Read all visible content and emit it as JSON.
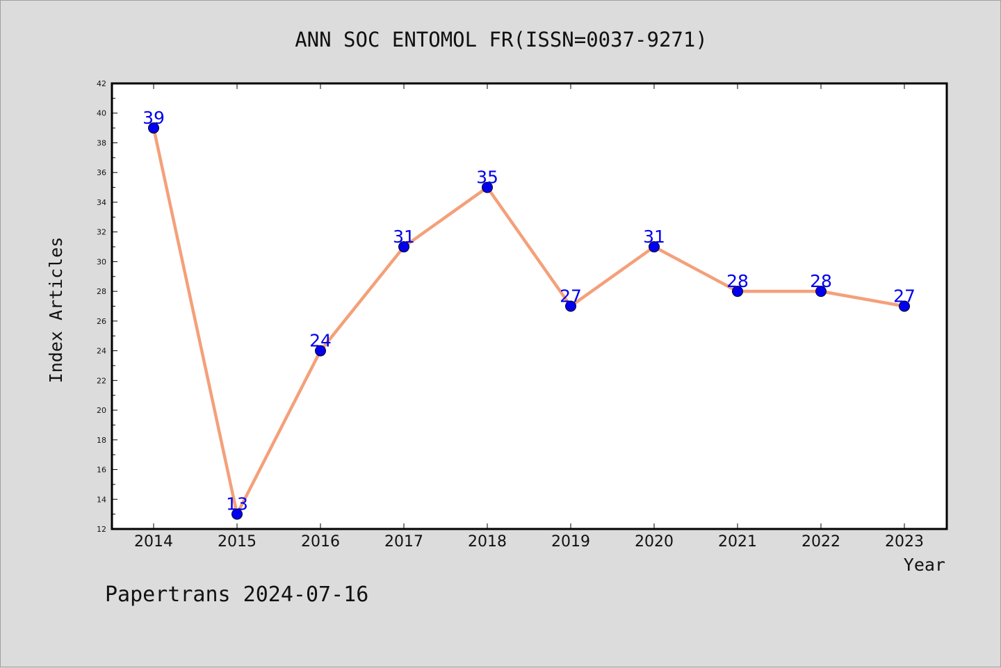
{
  "chart_data": {
    "type": "line",
    "title": "ANN SOC ENTOMOL FR(ISSN=0037-9271)",
    "xlabel": "Year",
    "ylabel": "Index Articles",
    "categories": [
      "2014",
      "2015",
      "2016",
      "2017",
      "2018",
      "2019",
      "2020",
      "2021",
      "2022",
      "2023"
    ],
    "series": [
      {
        "values": [
          39,
          13,
          24,
          31,
          35,
          27,
          31,
          28,
          28,
          27
        ],
        "line_color": "#f4a07a",
        "marker_color": "#0000ee"
      }
    ],
    "ylim": [
      12,
      42
    ],
    "y_ticks": [
      "12",
      "14",
      "16",
      "18",
      "20",
      "22",
      "24",
      "26",
      "28",
      "30",
      "32",
      "34",
      "36",
      "38",
      "40",
      "42"
    ],
    "label_color": "#0000ee",
    "grid": false,
    "legend": "none"
  },
  "footer": {
    "watermark": "Papertrans 2024-07-16"
  }
}
